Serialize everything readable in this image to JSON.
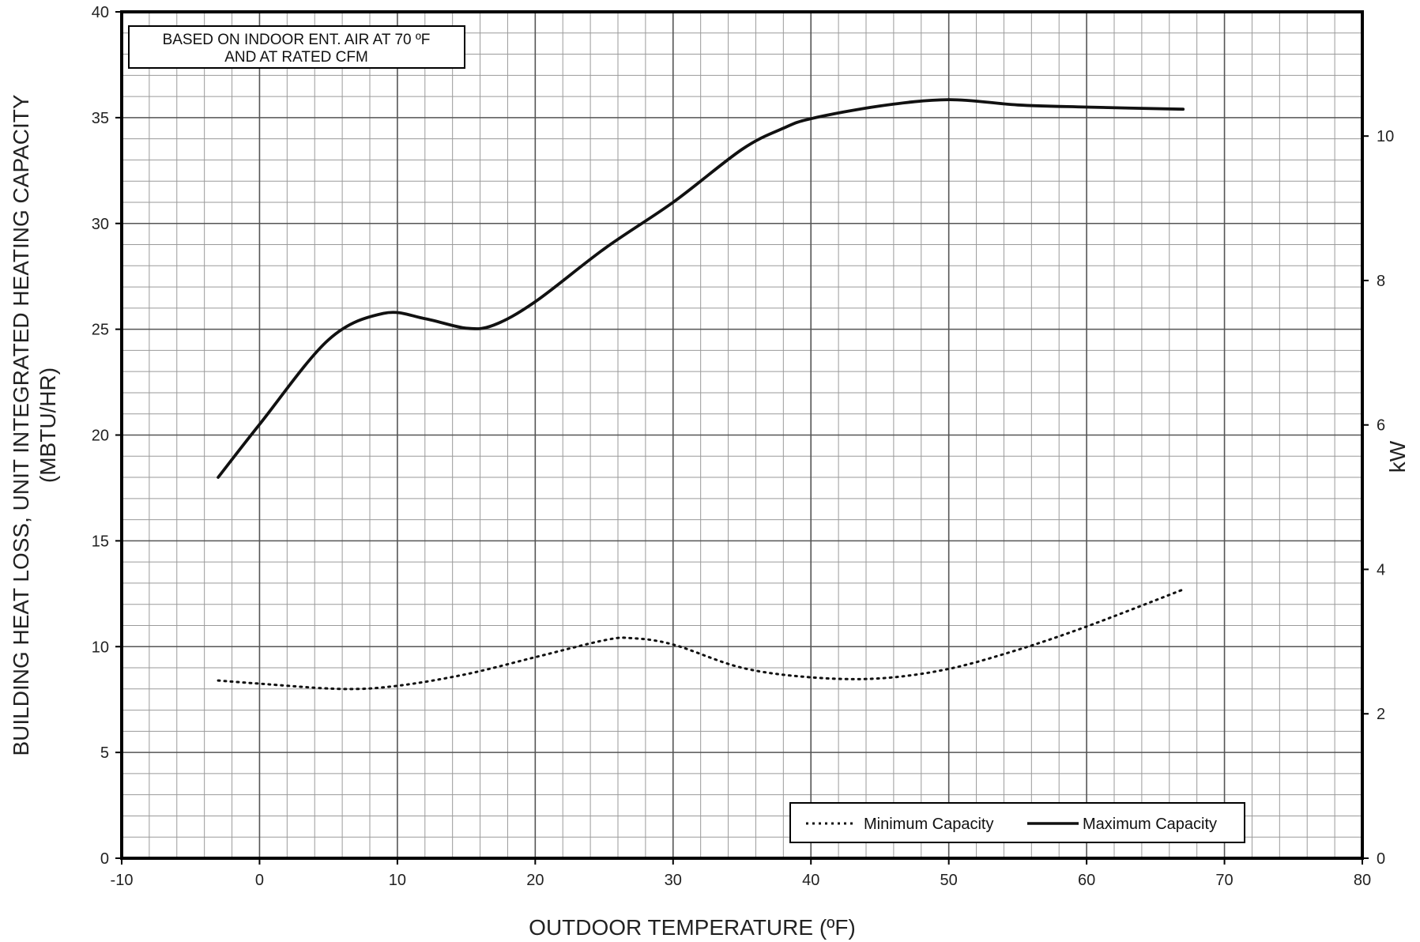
{
  "chart_data": {
    "type": "line",
    "xlabel": "OUTDOOR TEMPERATURE (ºF)",
    "ylabel_line1": "BUILDING HEAT LOSS, UNIT INTEGRATED HEATING CAPACITY",
    "ylabel_line2": "(MBTU/HR)",
    "y2label": "kW",
    "xlim": [
      -10,
      80
    ],
    "ylim": [
      0,
      40
    ],
    "y2lim": [
      0,
      11.72
    ],
    "xticks": [
      "-10",
      "0",
      "10",
      "20",
      "30",
      "40",
      "50",
      "60",
      "70",
      "80"
    ],
    "yticks": [
      "0",
      "5",
      "10",
      "15",
      "20",
      "25",
      "30",
      "35",
      "40"
    ],
    "y2ticks": [
      "0",
      "2",
      "4",
      "6",
      "8",
      "10"
    ],
    "grid": true,
    "note_line1": "BASED ON INDOOR ENT. AIR AT 70 ºF",
    "note_line2": "AND AT RATED CFM",
    "legend_position": "bottom-right",
    "series": [
      {
        "name": "Minimum Capacity",
        "style": "dotted",
        "x": [
          -3,
          0,
          6,
          10,
          15,
          20,
          25,
          27,
          30,
          35,
          40,
          45,
          50,
          55,
          60,
          67
        ],
        "y": [
          8.4,
          8.25,
          8.0,
          8.15,
          8.7,
          9.5,
          10.3,
          10.4,
          10.1,
          9.0,
          8.55,
          8.5,
          8.95,
          9.85,
          10.95,
          12.7
        ]
      },
      {
        "name": "Maximum Capacity",
        "style": "solid",
        "x": [
          -3,
          0,
          5,
          9,
          12,
          15,
          17,
          20,
          25,
          30,
          35,
          38,
          40,
          45,
          50,
          55,
          60,
          67
        ],
        "y": [
          18.0,
          20.5,
          24.5,
          25.75,
          25.5,
          25.05,
          25.2,
          26.3,
          28.8,
          31.0,
          33.5,
          34.5,
          34.95,
          35.55,
          35.85,
          35.6,
          35.5,
          35.4
        ]
      }
    ]
  }
}
